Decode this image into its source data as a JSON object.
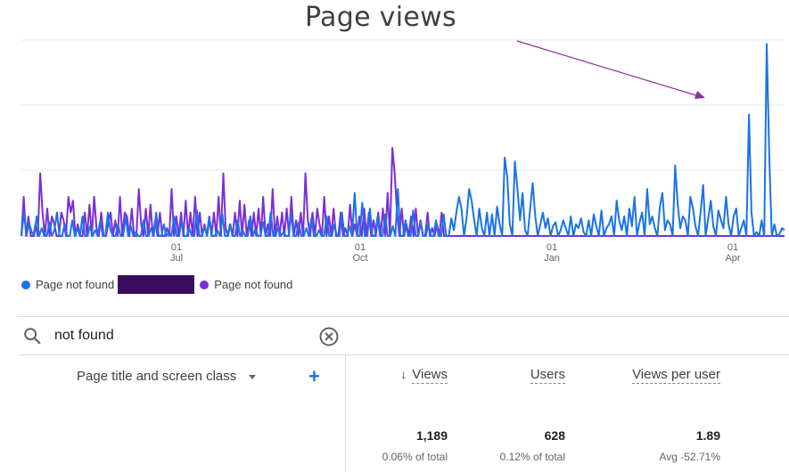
{
  "annotation": {
    "title": "Page views"
  },
  "chart_data": {
    "type": "line",
    "x_labels": [
      {
        "day": "01",
        "month": "Jul"
      },
      {
        "day": "01",
        "month": "Oct"
      },
      {
        "day": "01",
        "month": "Jan"
      },
      {
        "day": "01",
        "month": "Apr"
      }
    ],
    "grid": true,
    "series": [
      {
        "name": "Page not found",
        "color": "#1a73e8",
        "values": [
          0,
          12,
          0,
          7,
          2,
          0,
          10,
          0,
          4,
          0,
          0,
          7,
          0,
          3,
          12,
          0,
          0,
          6,
          0,
          0,
          8,
          0,
          4,
          0,
          10,
          0,
          0,
          5,
          0,
          3,
          0,
          8,
          0,
          0,
          12,
          3,
          0,
          0,
          6,
          0,
          0,
          10,
          0,
          5,
          0,
          2,
          0,
          0,
          8,
          0,
          0,
          4,
          0,
          12,
          0,
          0,
          6,
          0,
          2,
          0,
          10,
          0,
          0,
          8,
          0,
          0,
          4,
          0,
          0,
          13,
          0,
          0,
          5,
          0,
          9,
          0,
          0,
          3,
          0,
          11,
          0,
          0,
          6,
          0,
          0,
          8,
          0,
          3,
          0,
          0,
          10,
          0,
          4,
          0,
          0,
          7,
          0,
          0,
          12,
          0,
          0,
          5,
          0,
          2,
          0,
          0,
          11,
          0,
          0,
          7,
          0,
          0,
          4,
          0,
          9,
          0,
          0,
          3,
          0,
          0,
          10,
          0,
          0,
          6,
          0,
          0,
          12,
          0,
          0,
          5,
          0,
          22,
          0,
          0,
          17,
          0,
          0,
          14,
          0,
          0,
          10,
          0,
          0,
          11,
          0,
          0,
          5,
          0,
          24,
          0,
          0,
          8,
          0,
          0,
          13,
          0,
          0,
          7,
          0,
          0,
          6,
          0,
          0,
          8,
          0,
          0,
          11,
          0,
          0,
          9,
          3,
          12,
          20,
          14,
          0,
          9,
          24,
          18,
          8,
          0,
          14,
          4,
          0,
          12,
          0,
          11,
          0,
          15,
          6,
          0,
          40,
          30,
          6,
          0,
          38,
          24,
          8,
          22,
          3,
          0,
          14,
          27,
          10,
          0,
          6,
          12,
          4,
          9,
          0,
          5,
          7,
          0,
          3,
          8,
          4,
          0,
          10,
          0,
          6,
          4,
          9,
          2,
          0,
          8,
          0,
          11,
          5,
          0,
          13,
          0,
          4,
          6,
          10,
          0,
          18,
          8,
          3,
          10,
          0,
          14,
          5,
          20,
          0,
          7,
          12,
          0,
          24,
          6,
          10,
          4,
          0,
          15,
          22,
          3,
          8,
          6,
          0,
          36,
          16,
          4,
          10,
          8,
          0,
          20,
          14,
          5,
          0,
          12,
          26,
          0,
          9,
          18,
          5,
          0,
          13,
          8,
          4,
          20,
          6,
          0,
          10,
          14,
          0,
          4,
          8,
          0,
          62,
          12,
          0,
          2,
          0,
          8,
          0,
          98,
          40,
          0,
          6,
          0,
          1,
          4,
          3
        ]
      },
      {
        "name": "Page not found",
        "color": "#7b2fd6",
        "values": [
          0,
          20,
          0,
          10,
          0,
          0,
          6,
          0,
          32,
          12,
          0,
          14,
          0,
          10,
          6,
          0,
          0,
          12,
          8,
          0,
          20,
          12,
          18,
          0,
          6,
          0,
          0,
          12,
          0,
          16,
          0,
          20,
          4,
          0,
          12,
          0,
          0,
          6,
          12,
          0,
          8,
          0,
          20,
          0,
          12,
          10,
          0,
          14,
          0,
          0,
          24,
          6,
          0,
          14,
          0,
          16,
          0,
          8,
          0,
          12,
          0,
          0,
          4,
          0,
          24,
          0,
          10,
          0,
          12,
          0,
          18,
          0,
          12,
          0,
          20,
          0,
          12,
          0,
          6,
          0,
          10,
          0,
          12,
          0,
          20,
          0,
          32,
          4,
          0,
          6,
          0,
          12,
          0,
          18,
          0,
          16,
          0,
          8,
          0,
          12,
          0,
          14,
          0,
          20,
          0,
          6,
          0,
          24,
          0,
          10,
          0,
          12,
          0,
          14,
          0,
          20,
          0,
          8,
          0,
          12,
          0,
          32,
          8,
          0,
          12,
          0,
          14,
          6,
          0,
          20,
          0,
          10,
          0,
          14,
          0,
          0,
          12,
          0,
          4,
          0,
          16,
          0,
          6,
          0,
          10,
          0,
          14,
          0,
          12,
          0,
          8,
          0,
          12,
          0,
          14,
          0,
          22,
          0,
          45,
          32,
          12,
          0,
          14,
          0,
          6,
          0,
          10,
          0,
          14,
          0,
          8,
          0,
          0,
          12,
          0,
          4,
          0,
          6,
          0,
          12,
          0
        ]
      }
    ]
  },
  "legend": {
    "items": [
      {
        "label": "Page not found",
        "color": "#1a73e8"
      },
      {
        "label": "Page not found",
        "color": "#7b2fd6"
      }
    ]
  },
  "search": {
    "value": "not found"
  },
  "table": {
    "dimension_header": "Page title and screen class",
    "columns": [
      {
        "label": "Views",
        "sorted": true
      },
      {
        "label": "Users"
      },
      {
        "label": "Views per user"
      }
    ],
    "totals": [
      {
        "value": "1,189",
        "sub": "0.06% of total"
      },
      {
        "value": "628",
        "sub": "0.12% of total"
      },
      {
        "value": "1.89",
        "sub": "Avg -52.71%"
      }
    ]
  }
}
